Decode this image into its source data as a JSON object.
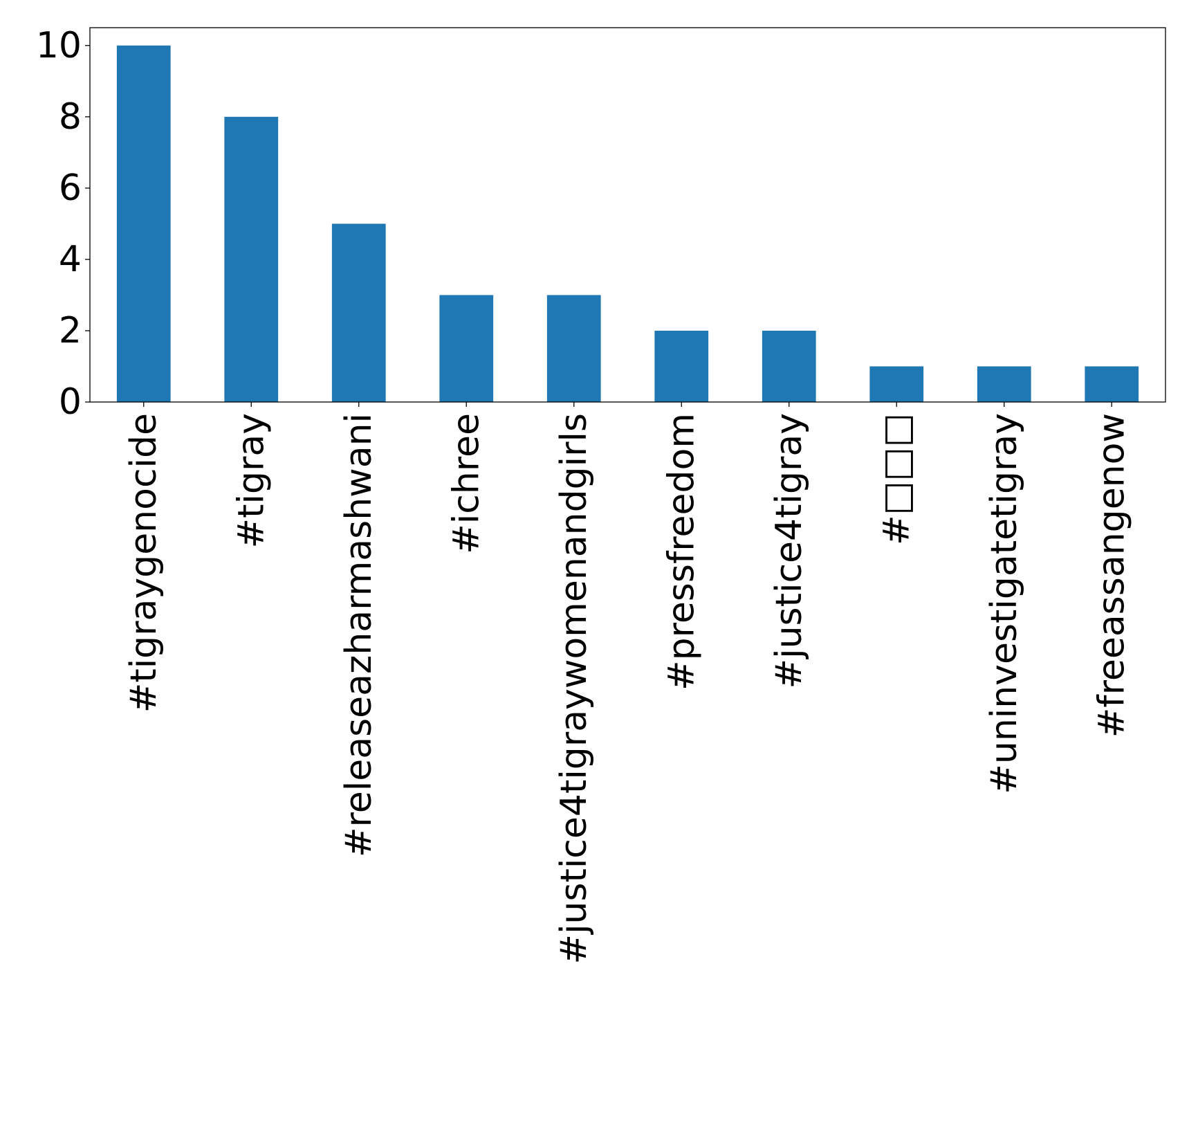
{
  "chart_data": {
    "type": "bar",
    "categories": [
      "#tigraygenocide",
      "#tigray",
      "#releaseazharmashwani",
      "#ichree",
      "#justice4tigraywomenandgirls",
      "#pressfreedom",
      "#justice4tigray",
      "#□□□",
      "#uninvestigatetigray",
      "#freeassangenow"
    ],
    "values": [
      10,
      8,
      5,
      3,
      3,
      2,
      2,
      1,
      1,
      1
    ],
    "yticks": [
      "0",
      "2",
      "4",
      "6",
      "8",
      "10"
    ],
    "ylim": [
      0,
      10.5
    ],
    "title": "",
    "xlabel": "",
    "ylabel": "",
    "bar_color": "#1f77b4",
    "grid": false,
    "legend": "none"
  }
}
